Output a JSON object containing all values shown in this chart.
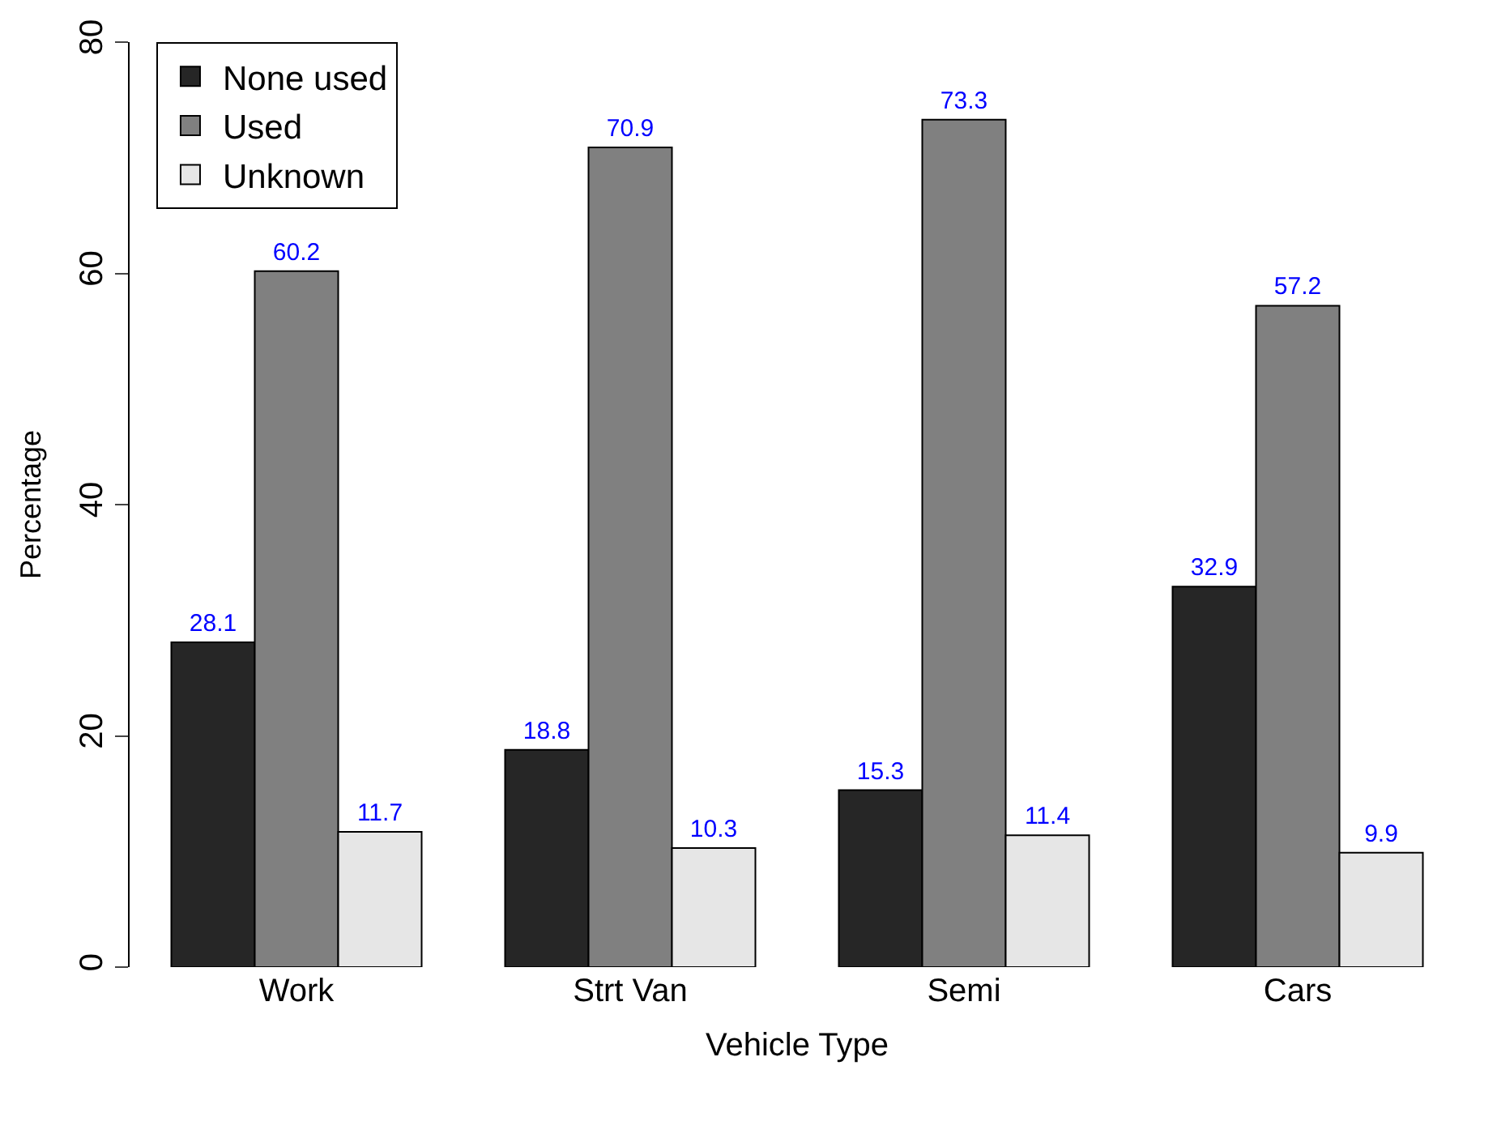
{
  "chart_data": {
    "type": "bar",
    "xlabel": "Vehicle Type",
    "ylabel": "Percentage",
    "categories": [
      "Work",
      "Strt Van",
      "Semi",
      "Cars"
    ],
    "series": [
      {
        "name": "None used",
        "color": "#262626",
        "values": [
          28.1,
          18.8,
          15.3,
          32.9
        ]
      },
      {
        "name": "Used",
        "color": "#808080",
        "values": [
          60.2,
          70.9,
          73.3,
          57.2
        ]
      },
      {
        "name": "Unknown",
        "color": "#e6e6e6",
        "values": [
          11.7,
          10.3,
          11.4,
          9.9
        ]
      }
    ],
    "ylim": [
      0,
      80
    ],
    "yticks": [
      0,
      20,
      40,
      60,
      80
    ],
    "data_labels": true,
    "legend": "top left",
    "grid": false
  }
}
